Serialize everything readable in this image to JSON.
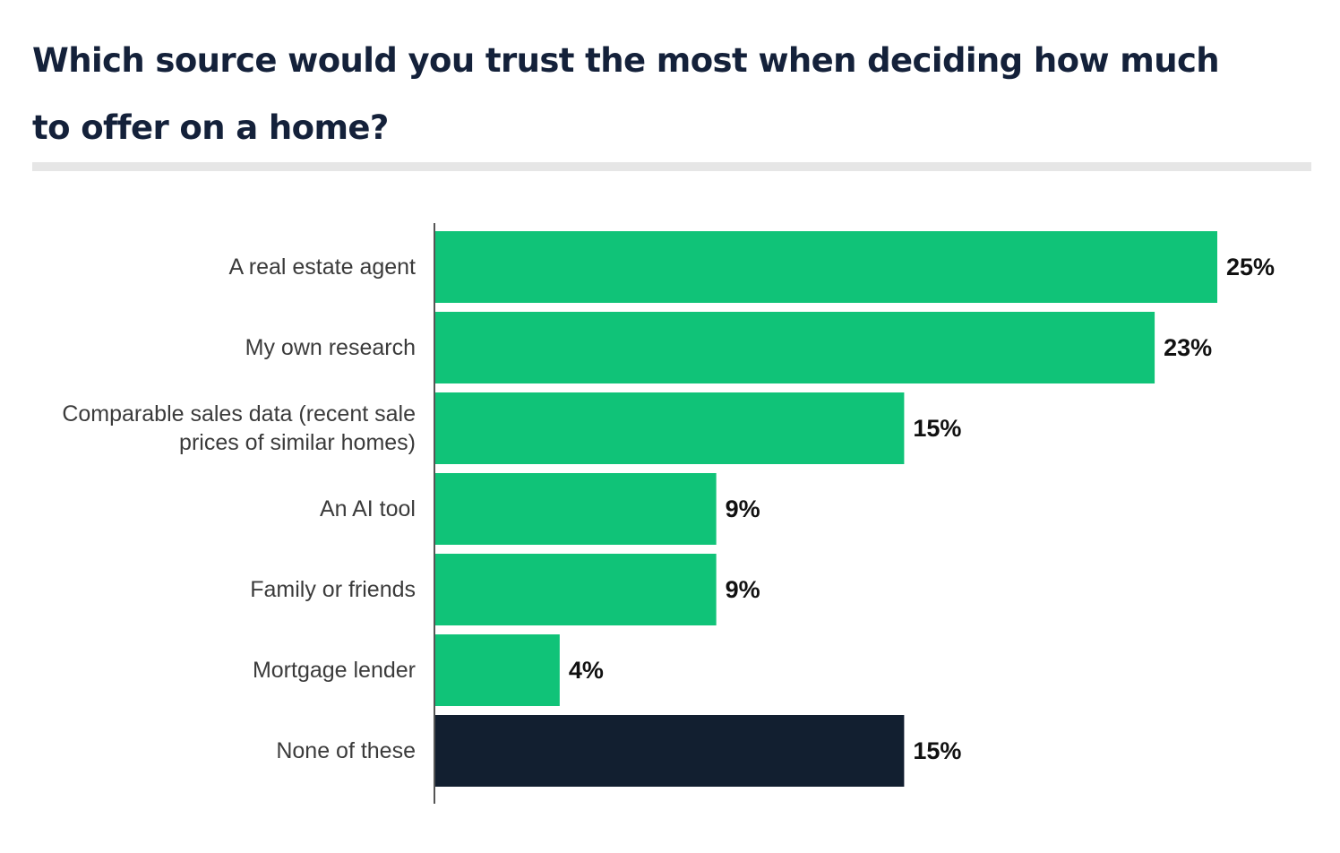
{
  "header": {
    "title": "Which source would you trust the most when deciding how much to offer on a home?"
  },
  "colors": {
    "primary_bar": "#10c378",
    "highlight_bar": "#121f30",
    "axis": "#555555"
  },
  "chart_data": {
    "type": "bar",
    "orientation": "horizontal",
    "title": "Which source would you trust the most when deciding how much to offer on a home?",
    "categories": [
      [
        "A real estate agent"
      ],
      [
        "My own research"
      ],
      [
        "Comparable sales data (recent sale",
        "prices of similar homes)"
      ],
      [
        "An AI tool"
      ],
      [
        "Family or friends"
      ],
      [
        "Mortgage lender"
      ],
      [
        "None of these"
      ]
    ],
    "values": [
      25,
      23,
      15,
      9,
      9,
      4,
      15
    ],
    "value_labels": [
      "25%",
      "23%",
      "15%",
      "9%",
      "9%",
      "4%",
      "15%"
    ],
    "unit": "%",
    "highlight_index": 6,
    "xlim": [
      0,
      25
    ],
    "grid": false,
    "legend": "none"
  }
}
